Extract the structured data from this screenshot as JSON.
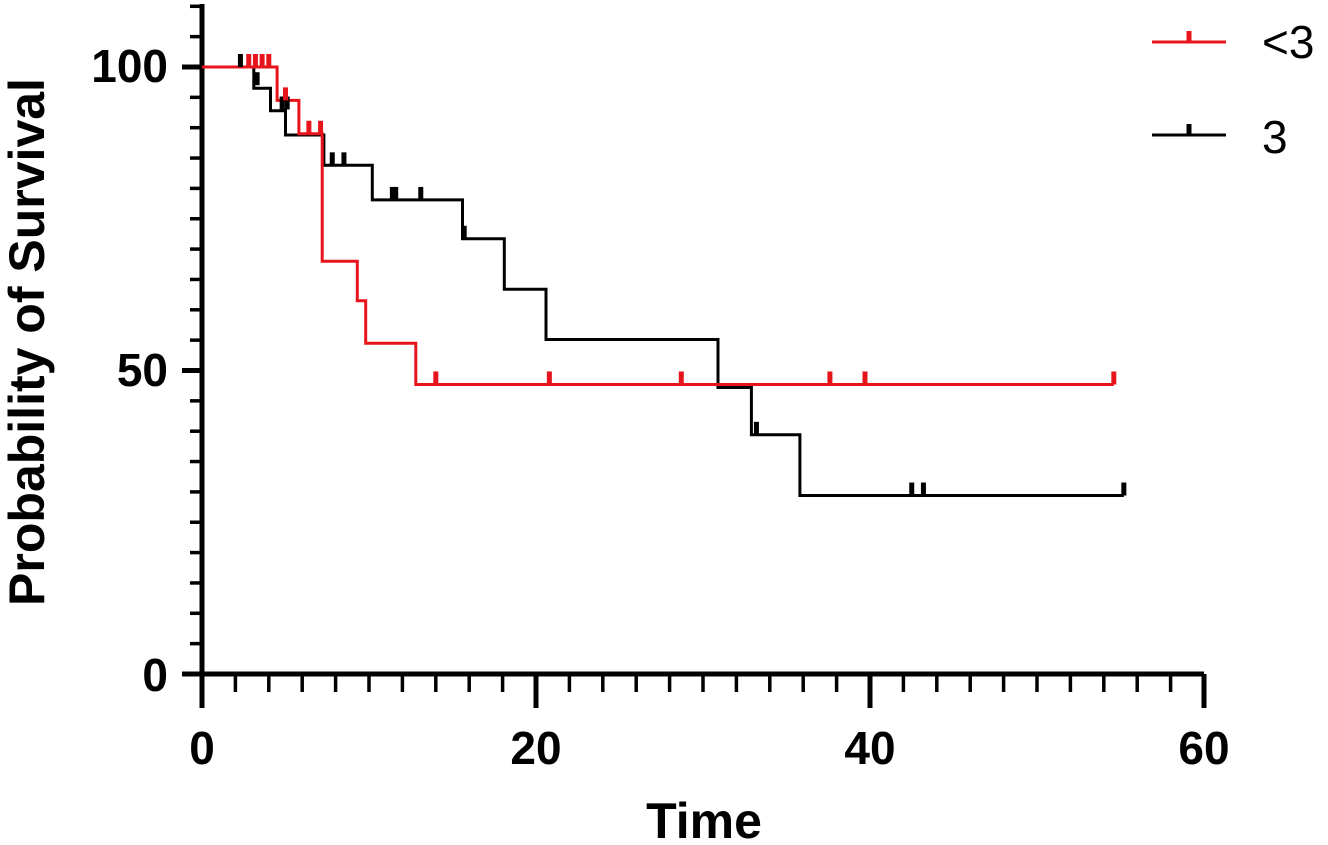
{
  "chart_data": {
    "type": "line",
    "subtype": "kaplan-meier-step",
    "xlabel": "Time",
    "ylabel": "Probability of Survival",
    "xlim": [
      0,
      60
    ],
    "ylim": [
      0,
      100
    ],
    "x_ticks": [
      "0",
      "20",
      "40",
      "60"
    ],
    "y_ticks": [
      "0",
      "50",
      "100"
    ],
    "x_minor_step": 2,
    "y_minor_step": 5,
    "grid": false,
    "legend_position": "top-right",
    "series": [
      {
        "name": "<3",
        "color": "#e8141c",
        "steps": [
          [
            0,
            100
          ],
          [
            4.5,
            100
          ],
          [
            4.5,
            94.5
          ],
          [
            5.8,
            94.5
          ],
          [
            5.8,
            89
          ],
          [
            7.2,
            89
          ],
          [
            7.2,
            68
          ],
          [
            9.3,
            68
          ],
          [
            9.3,
            61.5
          ],
          [
            9.8,
            61.5
          ],
          [
            9.8,
            54.5
          ],
          [
            12.8,
            54.5
          ],
          [
            12.8,
            47.7
          ],
          [
            54.6,
            47.7
          ]
        ],
        "censored": [
          [
            2.8,
            100
          ],
          [
            3.2,
            100
          ],
          [
            3.6,
            100
          ],
          [
            4.0,
            100
          ],
          [
            5.0,
            94.5
          ],
          [
            6.4,
            89
          ],
          [
            7.1,
            89
          ],
          [
            14.0,
            47.7
          ],
          [
            20.8,
            47.7
          ],
          [
            28.7,
            47.7
          ],
          [
            37.6,
            47.7
          ],
          [
            39.7,
            47.7
          ],
          [
            54.6,
            47.7
          ]
        ]
      },
      {
        "name": "3",
        "color": "#000000",
        "steps": [
          [
            0,
            100
          ],
          [
            3.1,
            100
          ],
          [
            3.1,
            96.5
          ],
          [
            4.1,
            96.5
          ],
          [
            4.1,
            92.8
          ],
          [
            5.0,
            92.8
          ],
          [
            5.0,
            88.8
          ],
          [
            7.3,
            88.8
          ],
          [
            7.3,
            83.8
          ],
          [
            10.2,
            83.8
          ],
          [
            10.2,
            78.1
          ],
          [
            15.6,
            78.1
          ],
          [
            15.6,
            71.7
          ],
          [
            18.1,
            71.7
          ],
          [
            18.1,
            63.4
          ],
          [
            20.6,
            63.4
          ],
          [
            20.6,
            55.1
          ],
          [
            30.9,
            55.1
          ],
          [
            30.9,
            47.2
          ],
          [
            32.9,
            47.2
          ],
          [
            32.9,
            39.4
          ],
          [
            35.8,
            39.4
          ],
          [
            35.8,
            29.4
          ],
          [
            55.2,
            29.4
          ]
        ]
      }
    ],
    "black_censored": [
      [
        2.3,
        100
      ],
      [
        3.3,
        97
      ],
      [
        4.8,
        93
      ],
      [
        5.1,
        93
      ],
      [
        7.8,
        83.8
      ],
      [
        8.5,
        83.8
      ],
      [
        11.4,
        78.1
      ],
      [
        11.6,
        78.1
      ],
      [
        13.1,
        78.1
      ],
      [
        15.7,
        71.7
      ],
      [
        33.2,
        39.4
      ],
      [
        42.5,
        29.4
      ],
      [
        43.2,
        29.4
      ],
      [
        55.2,
        29.4
      ]
    ]
  }
}
